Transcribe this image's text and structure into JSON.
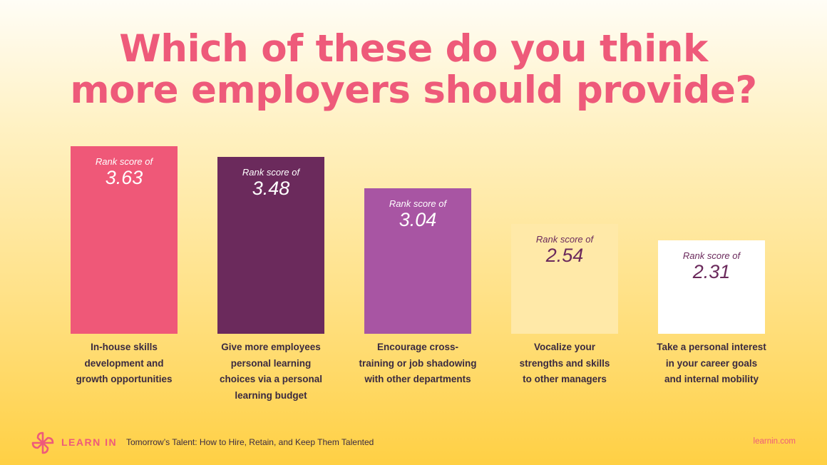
{
  "title_lines": [
    "Which of these do you think",
    "more employers should provide?"
  ],
  "chart_data": {
    "type": "bar",
    "title": "Which of these do you think more employers should provide?",
    "value_prefix": "Rank score of",
    "categories_lines": [
      [
        "In-house skills",
        "development and",
        "growth opportunities"
      ],
      [
        "Give more employees",
        "personal learning",
        "choices via a personal",
        "learning budget"
      ],
      [
        "Encourage cross-",
        "training or job shadowing",
        "with other departments"
      ],
      [
        "Vocalize your",
        "strengths and skills",
        "to other managers"
      ],
      [
        "Take a personal interest",
        "in your career goals",
        "and internal mobility"
      ]
    ],
    "values": [
      3.63,
      3.48,
      3.04,
      2.54,
      2.31
    ],
    "value_labels": [
      "3.63",
      "3.48",
      "3.04",
      "2.54",
      "2.31"
    ],
    "bar_colors": [
      "#ef5878",
      "#6b2a5c",
      "#a855a3",
      "#ffe9a8",
      "#ffffff"
    ],
    "label_colors": [
      "#ffffff",
      "#ffffff",
      "#ffffff",
      "#6b2a5c",
      "#6b2a5c"
    ],
    "grid": false,
    "legend": "none"
  },
  "footer": {
    "brand": "LEARN IN",
    "subtitle": "Tomorrow’s Talent: How to Hire, Retain, and Keep Them Talented",
    "url": "learnin.com",
    "logo_icon": "pinwheel-logo-icon",
    "accent": "#ee5a7a"
  }
}
